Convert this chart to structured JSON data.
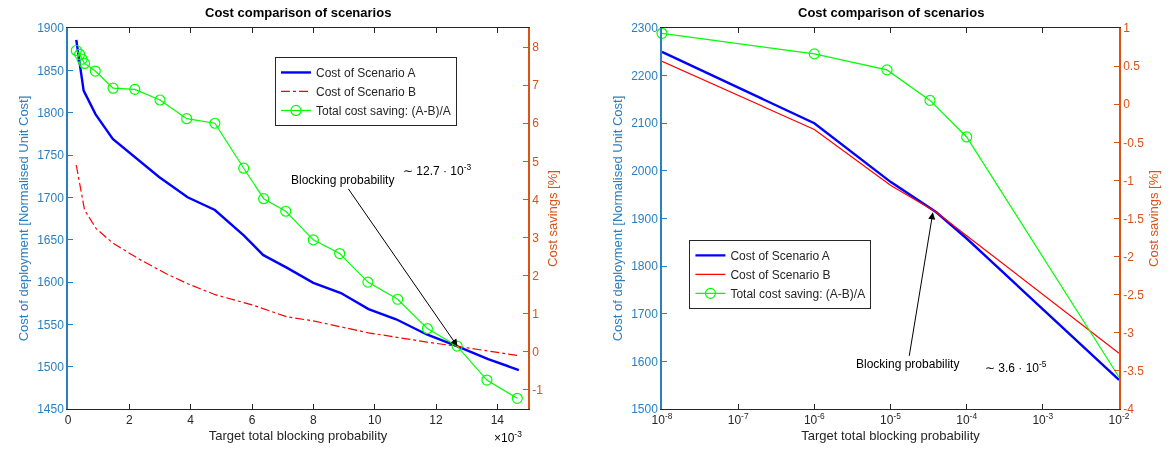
{
  "chart_data": [
    {
      "type": "line",
      "title": "Cost comparison of scenarios",
      "xlabel": "Target total blocking probability",
      "ylabel": "Cost of deployment [Normalised Unit Cost]",
      "y2label": "Cost savings [%]",
      "xlim": [
        0,
        15
      ],
      "xticks": [
        0,
        2,
        4,
        6,
        8,
        10,
        12,
        14
      ],
      "ylim": [
        1450,
        1900
      ],
      "yticks": [
        1450,
        1500,
        1550,
        1600,
        1650,
        1700,
        1750,
        1800,
        1850,
        1900
      ],
      "y2lim": [
        -1.5,
        8.5
      ],
      "y2ticks": [
        -1,
        0,
        1,
        2,
        3,
        4,
        5,
        6,
        7,
        8
      ],
      "legend": "top right",
      "grid": false,
      "series": [
        {
          "name": "Cost of Scenario A",
          "color": "#0000ff",
          "line_style": "solid",
          "marker": "none",
          "x": [
            0.27,
            0.51,
            0.9,
            1.46,
            2.97,
            3.9,
            4.79,
            5.73,
            6.36,
            7.13,
            8.0,
            8.9,
            9.8,
            10.7,
            11.7,
            12.7,
            13.7,
            14.7
          ],
          "values": [
            1886,
            1826,
            1798,
            1769,
            1724,
            1700,
            1685,
            1655,
            1632,
            1617,
            1599,
            1587,
            1568,
            1556,
            1538,
            1524,
            1509,
            1496
          ]
        },
        {
          "name": "Cost of Scenario B",
          "color": "#ff0000",
          "line_style": "dashdot",
          "marker": "none",
          "x": [
            0.27,
            0.54,
            0.92,
            1.46,
            2.32,
            3.19,
            3.9,
            4.8,
            6.0,
            7.13,
            8.0,
            9.8,
            11.7,
            12.7,
            14.7
          ],
          "values": [
            1738,
            1685,
            1663,
            1646,
            1627,
            1610,
            1598,
            1585,
            1573,
            1559,
            1554,
            1540,
            1529,
            1524,
            1513
          ]
        },
        {
          "name": "Total cost saving: (A-B)/A",
          "color": "#00ff00",
          "line_style": "solid",
          "marker": "circle",
          "axis": "y2",
          "x": [
            0.27,
            0.38,
            0.46,
            0.54,
            0.89,
            1.47,
            2.18,
            3.0,
            3.87,
            4.79,
            5.73,
            6.38,
            7.1,
            8.0,
            8.86,
            9.78,
            10.75,
            11.72,
            12.69,
            13.66,
            14.65
          ],
          "values": [
            7.91,
            7.81,
            7.68,
            7.57,
            7.37,
            6.92,
            6.89,
            6.61,
            6.12,
            6.0,
            4.82,
            4.02,
            3.69,
            2.94,
            2.58,
            1.83,
            1.38,
            0.61,
            0.15,
            -0.74,
            -1.22
          ]
        }
      ],
      "annotations": [
        {
          "text": "Blocking probability",
          "x": 12.7,
          "y": 1524
        },
        "∼ 12.7 · 10$^{-3}$",
        "×10$^{-3}$"
      ]
    },
    {
      "type": "line",
      "title": "Cost comparison of scenarios",
      "xlabel": "Target total blocking probability",
      "ylabel": "Cost of deployment [Normalised Unit Cost]",
      "y2label": "Cost savings [%]",
      "log": "x",
      "xlim": [
        1e-08,
        0.01
      ],
      "xticks": [
        {
          "value": 1e-08,
          "label": "10$^{-8}$"
        },
        {
          "value": 1e-07,
          "label": "10$^{-7}$"
        },
        {
          "value": 1e-06,
          "label": "10$^{-6}$"
        },
        {
          "value": 1e-05,
          "label": "10$^{-5}$"
        },
        {
          "value": 0.0001,
          "label": "10$^{-4}$"
        },
        {
          "value": 0.001,
          "label": "10$^{-3}$"
        },
        {
          "value": 0.01,
          "label": "10$^{-2}$"
        }
      ],
      "ylim": [
        1500,
        2300
      ],
      "yticks": [
        1500,
        1600,
        1700,
        1800,
        1900,
        2000,
        2100,
        2200,
        2300
      ],
      "y2lim": [
        -4,
        1
      ],
      "y2ticks": [
        -4,
        -3.5,
        -3,
        -2.5,
        -2,
        -1.5,
        -1,
        -0.5,
        0,
        0.5,
        1
      ],
      "legend": "bottom left",
      "grid": false,
      "series": [
        {
          "name": "Cost of Scenario A",
          "color": "#0000ff",
          "line_style": "solid",
          "marker": "none",
          "x": [
            1e-08,
            1e-06,
            1e-05,
            4e-05,
            0.0001,
            0.01
          ],
          "values": [
            2250,
            2100,
            1977,
            1913,
            1858,
            1561
          ]
        },
        {
          "name": "Cost of Scenario B",
          "color": "#ff0000",
          "line_style": "solid",
          "marker": "none",
          "x": [
            1e-08,
            1e-06,
            1e-05,
            4e-05,
            0.0001,
            0.01
          ],
          "values": [
            2230,
            2087,
            1970,
            1913,
            1864,
            1617
          ]
        },
        {
          "name": "Total cost saving: (A-B)/A",
          "color": "#00ff00",
          "line_style": "solid",
          "marker": "circle",
          "axis": "y2",
          "x": [
            1e-08,
            1e-06,
            9e-06,
            3.3e-05,
            0.0001,
            0.01
          ],
          "values": [
            0.93,
            0.66,
            0.45,
            0.05,
            -0.43,
            -3.58
          ]
        }
      ],
      "annotations": [
        {
          "text": "Blocking probability",
          "x": 3.6e-05,
          "y": 1913
        },
        "∼ 3.6 · 10$^{-5}$"
      ]
    }
  ]
}
